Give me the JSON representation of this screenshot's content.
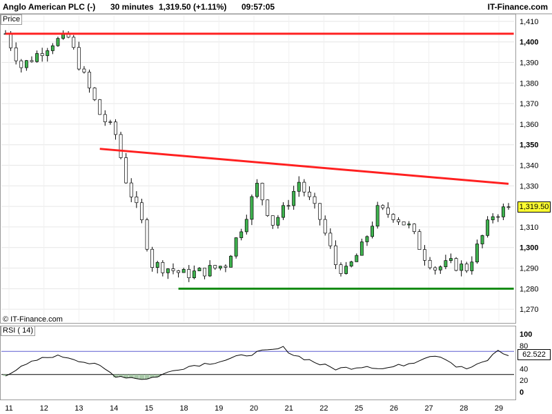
{
  "header": {
    "instrument": "Anglo American PLC (-)",
    "timeframe": "30 minutes",
    "price_change": "1,319.50 (+1.11%)",
    "time": "09:57:05",
    "brand": "IT-Finance.com"
  },
  "panels": {
    "price_label": "Price",
    "copyright": "© IT-Finance.com",
    "rsi_label": "RSI ( 14)"
  },
  "colors": {
    "up_candle": "#3fb34f",
    "down_candle": "#ffffff",
    "resistance": "#ff2020",
    "support": "#138a13",
    "rsi_line": "#000000",
    "rsi_overbought": "#5b5bd0",
    "rsi_oversold_fill": "#a8c8a8"
  },
  "chart_data": [
    {
      "type": "candlestick",
      "title": "Anglo American PLC (-)",
      "ylabel": "Price",
      "ylim": [
        1264,
        1413
      ],
      "y_ticks": [
        1270,
        1280,
        1290,
        1300,
        1310,
        1320,
        1330,
        1340,
        1350,
        1360,
        1370,
        1380,
        1390,
        1400,
        1410
      ],
      "y_tick_labels": [
        "1,270",
        "1,280",
        "1,290",
        "1,300",
        "1,310",
        "1,320",
        "1,330",
        "1,340",
        "1,350",
        "1,360",
        "1,370",
        "1,380",
        "1,390",
        "1,400",
        "1,410"
      ],
      "bold_ticks": [
        "1,300",
        "1,350",
        "1,400"
      ],
      "x_tick_labels": [
        "11",
        "12",
        "13",
        "14",
        "15",
        "18",
        "19",
        "20",
        "21",
        "22",
        "25",
        "26",
        "27",
        "28",
        "29"
      ],
      "last_price": 1319.5,
      "last_price_label": "1,319.50",
      "close_path": [
        [
          0,
          1404
        ],
        [
          3,
          1388
        ],
        [
          6,
          1394
        ],
        [
          9,
          1400
        ],
        [
          12,
          1402
        ],
        [
          15,
          1383
        ],
        [
          18,
          1365
        ],
        [
          21,
          1355
        ],
        [
          23,
          1333
        ],
        [
          26,
          1312
        ],
        [
          28,
          1292
        ],
        [
          31,
          1290
        ],
        [
          34,
          1287
        ],
        [
          37,
          1288
        ],
        [
          40,
          1290
        ],
        [
          42,
          1292
        ],
        [
          45,
          1310
        ],
        [
          48,
          1330
        ],
        [
          51,
          1312
        ],
        [
          53,
          1318
        ],
        [
          56,
          1332
        ],
        [
          60,
          1314
        ],
        [
          63,
          1292
        ],
        [
          65,
          1288
        ],
        [
          68,
          1300
        ],
        [
          71,
          1318
        ],
        [
          74,
          1316
        ],
        [
          77,
          1310
        ],
        [
          80,
          1296
        ],
        [
          82,
          1290
        ],
        [
          85,
          1292
        ],
        [
          88,
          1290
        ],
        [
          90,
          1300
        ],
        [
          93,
          1316
        ],
        [
          96,
          1319.5
        ]
      ],
      "lines": [
        {
          "name": "resistance-horizontal",
          "points": [
            [
              0,
              1404
            ],
            [
              97,
              1404
            ]
          ]
        },
        {
          "name": "resistance-trendline",
          "points": [
            [
              18,
              1348
            ],
            [
              96,
              1331
            ]
          ]
        },
        {
          "name": "support-horizontal",
          "points": [
            [
              33,
              1280
            ],
            [
              97,
              1280
            ]
          ]
        }
      ]
    },
    {
      "type": "line",
      "title": "RSI ( 14)",
      "ylim": [
        -12,
        112
      ],
      "y_ticks": [
        0,
        20,
        40,
        60,
        80,
        100
      ],
      "y_tick_labels": [
        "0",
        "20",
        "40",
        "60",
        "80",
        "100"
      ],
      "overbought": 70,
      "oversold": 30,
      "last_value": 62.522,
      "last_value_label": "62.522",
      "rsi_path": [
        [
          0,
          30
        ],
        [
          3,
          42
        ],
        [
          6,
          55
        ],
        [
          9,
          62
        ],
        [
          12,
          60
        ],
        [
          15,
          52
        ],
        [
          18,
          44
        ],
        [
          21,
          28
        ],
        [
          24,
          25
        ],
        [
          27,
          22
        ],
        [
          30,
          30
        ],
        [
          33,
          40
        ],
        [
          36,
          46
        ],
        [
          39,
          50
        ],
        [
          42,
          55
        ],
        [
          45,
          62
        ],
        [
          48,
          68
        ],
        [
          51,
          72
        ],
        [
          53,
          76
        ],
        [
          55,
          64
        ],
        [
          58,
          55
        ],
        [
          60,
          48
        ],
        [
          63,
          40
        ],
        [
          66,
          42
        ],
        [
          69,
          45
        ],
        [
          72,
          40
        ],
        [
          75,
          45
        ],
        [
          78,
          52
        ],
        [
          80,
          60
        ],
        [
          82,
          64
        ],
        [
          84,
          58
        ],
        [
          86,
          44
        ],
        [
          88,
          40
        ],
        [
          90,
          46
        ],
        [
          92,
          55
        ],
        [
          94,
          72
        ],
        [
          96,
          62.522
        ]
      ]
    }
  ]
}
